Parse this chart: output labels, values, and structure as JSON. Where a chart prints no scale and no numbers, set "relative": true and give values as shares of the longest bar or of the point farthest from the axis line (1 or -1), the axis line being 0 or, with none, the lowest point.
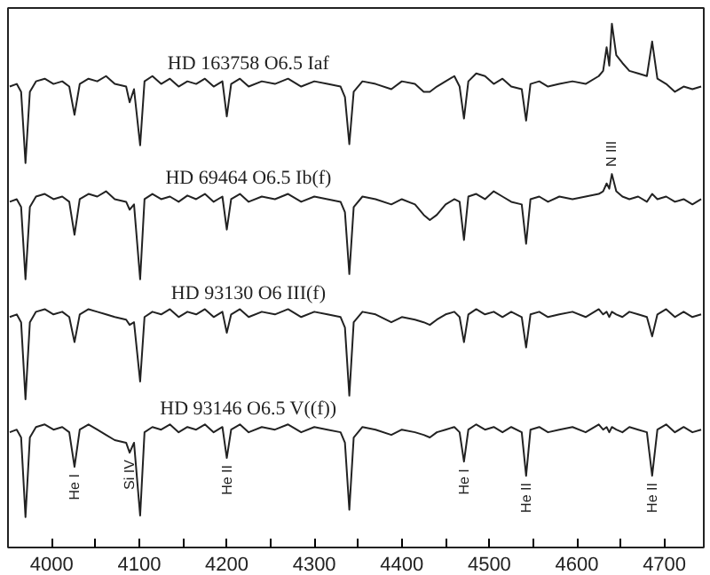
{
  "chart_data": {
    "type": "line",
    "relative": true,
    "grid": false,
    "marker": "none",
    "line_style": "solid",
    "xlim": [
      3950,
      4745
    ],
    "xticks": [
      4000,
      {
        "value": 4050,
        "label": null
      },
      4100,
      {
        "value": 4150,
        "label": null
      },
      4200,
      {
        "value": 4250,
        "label": null
      },
      4300,
      {
        "value": 4350,
        "label": null
      },
      4400,
      {
        "value": 4450,
        "label": null
      },
      4500,
      {
        "value": 4550,
        "label": null
      },
      4600,
      {
        "value": 4650,
        "label": null
      },
      4700
    ],
    "x": [
      3952,
      3960,
      3965,
      3970,
      3975,
      3982,
      3992,
      4002,
      4012,
      4020,
      4026,
      4032,
      4042,
      4052,
      4062,
      4072,
      4085,
      4089,
      4094,
      4101,
      4106,
      4115,
      4125,
      4135,
      4145,
      4155,
      4165,
      4175,
      4185,
      4195,
      4200,
      4205,
      4215,
      4225,
      4240,
      4255,
      4270,
      4285,
      4300,
      4315,
      4330,
      4335,
      4340,
      4345,
      4355,
      4370,
      4388,
      4400,
      4415,
      4425,
      4432,
      4440,
      4450,
      4460,
      4466,
      4471,
      4476,
      4485,
      4495,
      4505,
      4515,
      4525,
      4537,
      4542,
      4547,
      4557,
      4567,
      4580,
      4595,
      4610,
      4625,
      4630,
      4634,
      4637,
      4640,
      4645,
      4652,
      4660,
      4670,
      4680,
      4686,
      4692,
      4702,
      4712,
      4722,
      4732,
      4742
    ],
    "series": [
      {
        "name": "HD 163758  O6.5 Iaf",
        "color": "#222222",
        "values": [
          0.88,
          0.885,
          0.87,
          0.734,
          0.87,
          0.89,
          0.895,
          0.885,
          0.89,
          0.88,
          0.826,
          0.885,
          0.895,
          0.89,
          0.9,
          0.885,
          0.88,
          0.85,
          0.875,
          0.768,
          0.89,
          0.9,
          0.885,
          0.895,
          0.88,
          0.89,
          0.885,
          0.895,
          0.88,
          0.89,
          0.823,
          0.885,
          0.895,
          0.88,
          0.89,
          0.885,
          0.895,
          0.88,
          0.89,
          0.885,
          0.88,
          0.86,
          0.77,
          0.87,
          0.89,
          0.885,
          0.875,
          0.89,
          0.885,
          0.87,
          0.87,
          0.88,
          0.89,
          0.9,
          0.88,
          0.819,
          0.89,
          0.905,
          0.9,
          0.885,
          0.895,
          0.88,
          0.875,
          0.815,
          0.885,
          0.89,
          0.88,
          0.885,
          0.89,
          0.885,
          0.9,
          0.91,
          0.955,
          0.92,
          1.0,
          0.94,
          0.925,
          0.91,
          0.905,
          0.9,
          0.966,
          0.895,
          0.885,
          0.87,
          0.88,
          0.875,
          0.88
        ]
      },
      {
        "name": "HD 69464  O6.5 Ib(f)",
        "color": "#222222",
        "values": [
          0.66,
          0.665,
          0.65,
          0.512,
          0.65,
          0.67,
          0.675,
          0.665,
          0.67,
          0.66,
          0.597,
          0.665,
          0.675,
          0.67,
          0.68,
          0.665,
          0.66,
          0.645,
          0.655,
          0.512,
          0.665,
          0.675,
          0.665,
          0.67,
          0.66,
          0.672,
          0.665,
          0.675,
          0.66,
          0.67,
          0.607,
          0.665,
          0.675,
          0.66,
          0.67,
          0.665,
          0.675,
          0.66,
          0.67,
          0.665,
          0.66,
          0.64,
          0.522,
          0.65,
          0.67,
          0.665,
          0.655,
          0.665,
          0.655,
          0.635,
          0.625,
          0.635,
          0.655,
          0.665,
          0.66,
          0.587,
          0.67,
          0.675,
          0.665,
          0.68,
          0.67,
          0.66,
          0.655,
          0.58,
          0.665,
          0.67,
          0.66,
          0.67,
          0.665,
          0.67,
          0.675,
          0.68,
          0.695,
          0.685,
          0.713,
          0.68,
          0.67,
          0.665,
          0.67,
          0.66,
          0.675,
          0.665,
          0.67,
          0.66,
          0.665,
          0.655,
          0.665
        ]
      },
      {
        "name": "HD 93130  O6 III(f)",
        "color": "#222222",
        "values": [
          0.44,
          0.445,
          0.43,
          0.283,
          0.43,
          0.45,
          0.455,
          0.445,
          0.45,
          0.44,
          0.392,
          0.445,
          0.455,
          0.45,
          0.445,
          0.44,
          0.435,
          0.425,
          0.43,
          0.317,
          0.44,
          0.45,
          0.445,
          0.455,
          0.44,
          0.45,
          0.445,
          0.455,
          0.44,
          0.45,
          0.41,
          0.445,
          0.455,
          0.44,
          0.45,
          0.445,
          0.455,
          0.44,
          0.45,
          0.445,
          0.44,
          0.42,
          0.29,
          0.43,
          0.45,
          0.445,
          0.43,
          0.44,
          0.435,
          0.43,
          0.425,
          0.435,
          0.445,
          0.45,
          0.44,
          0.392,
          0.445,
          0.455,
          0.445,
          0.45,
          0.44,
          0.45,
          0.44,
          0.382,
          0.445,
          0.45,
          0.44,
          0.445,
          0.45,
          0.44,
          0.455,
          0.445,
          0.45,
          0.44,
          0.45,
          0.445,
          0.44,
          0.45,
          0.445,
          0.44,
          0.403,
          0.445,
          0.455,
          0.44,
          0.45,
          0.44,
          0.445
        ]
      },
      {
        "name": "HD 93146  O6.5 V((f))",
        "color": "#222222",
        "values": [
          0.22,
          0.225,
          0.21,
          0.058,
          0.21,
          0.23,
          0.235,
          0.225,
          0.23,
          0.22,
          0.154,
          0.225,
          0.235,
          0.225,
          0.215,
          0.205,
          0.2,
          0.181,
          0.2,
          0.061,
          0.22,
          0.23,
          0.225,
          0.235,
          0.22,
          0.23,
          0.225,
          0.235,
          0.22,
          0.23,
          0.171,
          0.225,
          0.235,
          0.22,
          0.23,
          0.225,
          0.235,
          0.22,
          0.23,
          0.225,
          0.22,
          0.2,
          0.072,
          0.21,
          0.23,
          0.225,
          0.215,
          0.225,
          0.22,
          0.215,
          0.21,
          0.22,
          0.225,
          0.23,
          0.22,
          0.164,
          0.225,
          0.235,
          0.225,
          0.23,
          0.22,
          0.23,
          0.22,
          0.137,
          0.225,
          0.23,
          0.22,
          0.225,
          0.23,
          0.22,
          0.235,
          0.225,
          0.23,
          0.22,
          0.23,
          0.225,
          0.22,
          0.23,
          0.225,
          0.22,
          0.137,
          0.225,
          0.235,
          0.22,
          0.23,
          0.22,
          0.225
        ]
      }
    ],
    "annotations": [
      {
        "text": "He I",
        "x": 4026,
        "y": 0.154
      },
      {
        "text": "Si IV",
        "x": 4089,
        "y": 0.181
      },
      {
        "text": "He II",
        "x": 4200,
        "y": 0.171
      },
      {
        "text": "He I",
        "x": 4471,
        "y": 0.164
      },
      {
        "text": "He II",
        "x": 4542,
        "y": 0.137
      },
      {
        "text": "He II",
        "x": 4686,
        "y": 0.137
      },
      {
        "text": "N III",
        "x": 4640,
        "y": 0.713
      }
    ]
  }
}
